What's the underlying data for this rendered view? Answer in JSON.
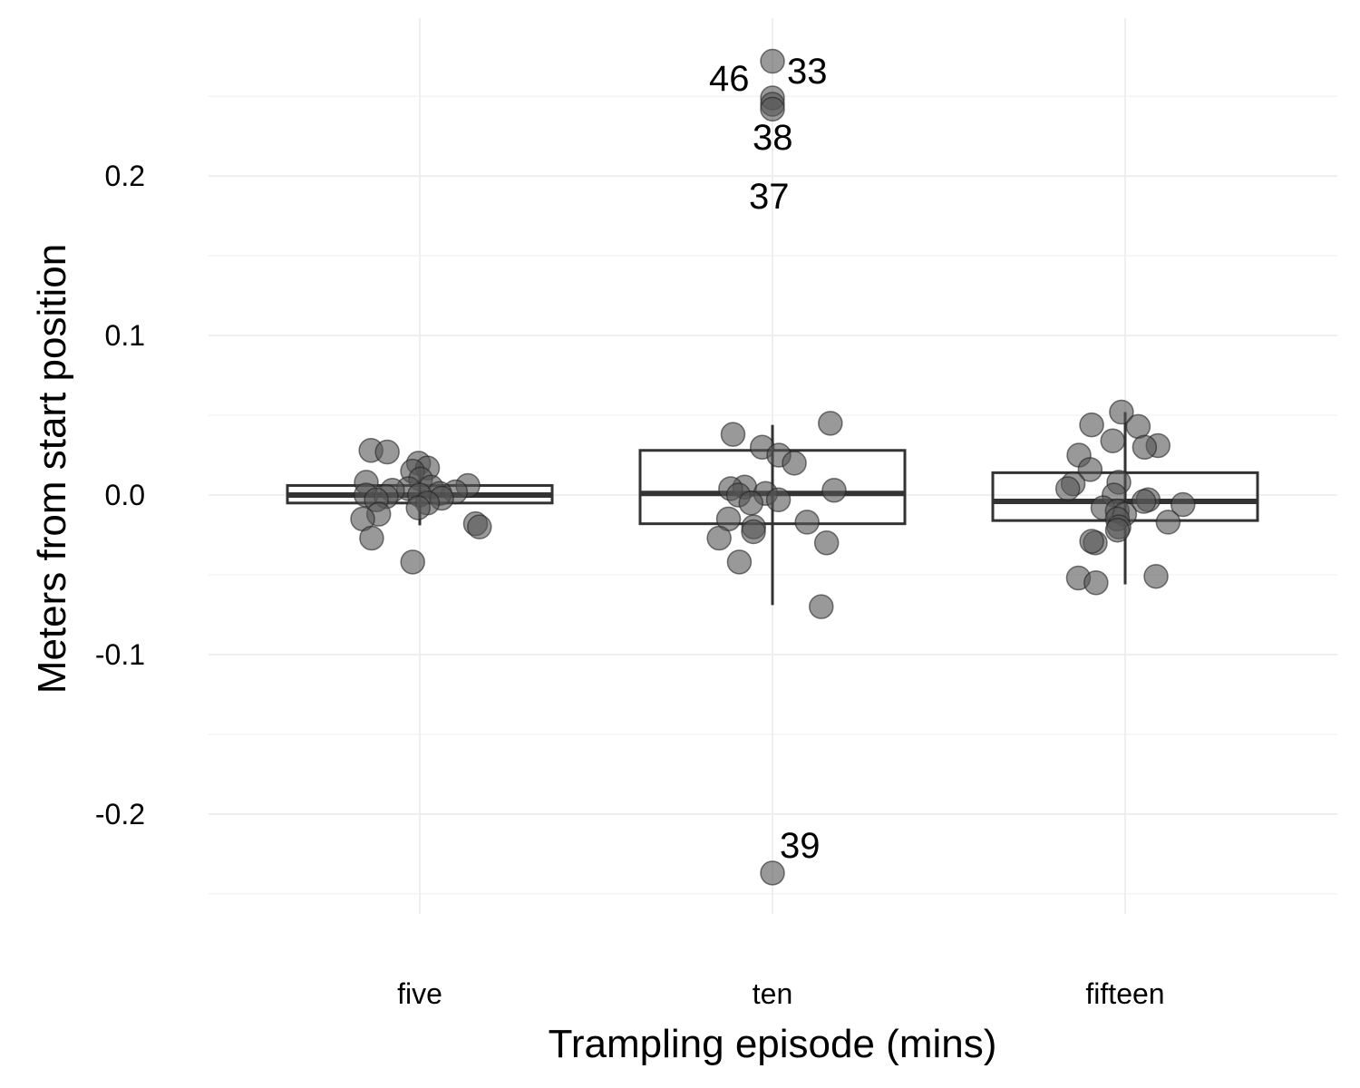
{
  "chart_data": {
    "type": "boxplot",
    "xlabel": "Trampling episode (mins)",
    "ylabel": "Meters from start position",
    "categories": [
      "five",
      "ten",
      "fifteen"
    ],
    "ylim": [
      -0.265,
      0.29
    ],
    "yticks": [
      -0.2,
      -0.1,
      0.0,
      0.1,
      0.2
    ],
    "ytick_labels": [
      "-0.2",
      "-0.1",
      "0.0",
      "0.1",
      "0.2"
    ],
    "grid": true,
    "legend": "none",
    "colors": {
      "point_fill": "#555555",
      "box_stroke": "#333333",
      "grid": "#ebebeb"
    },
    "boxes": [
      {
        "category": "five",
        "q1": -0.005,
        "median": 0.0,
        "q3": 0.006,
        "whisker_low": -0.019,
        "whisker_high": 0.02
      },
      {
        "category": "ten",
        "q1": -0.018,
        "median": 0.001,
        "q3": 0.028,
        "whisker_low": -0.069,
        "whisker_high": 0.044
      },
      {
        "category": "fifteen",
        "q1": -0.016,
        "median": -0.004,
        "q3": 0.014,
        "whisker_low": -0.056,
        "whisker_high": 0.052
      }
    ],
    "points": [
      {
        "category": "five",
        "values": [
          0.02,
          0.017,
          0.028,
          0.027,
          0.015,
          0.01,
          0.008,
          0.006,
          0.005,
          0.004,
          0.003,
          0.002,
          0.001,
          0.0,
          0.0,
          -0.001,
          -0.002,
          -0.003,
          -0.005,
          -0.008,
          -0.012,
          -0.015,
          -0.018,
          -0.02,
          -0.027,
          -0.042
        ]
      },
      {
        "category": "ten",
        "values": [
          0.045,
          0.038,
          0.03,
          0.025,
          0.02,
          0.005,
          0.004,
          0.003,
          0.001,
          0.0,
          -0.003,
          -0.005,
          -0.015,
          -0.017,
          -0.02,
          -0.023,
          -0.027,
          -0.03,
          -0.042,
          -0.07
        ]
      },
      {
        "category": "fifteen",
        "values": [
          0.052,
          0.044,
          0.043,
          0.034,
          0.031,
          0.03,
          0.025,
          0.016,
          0.008,
          0.007,
          0.004,
          0.0,
          -0.003,
          -0.004,
          -0.006,
          -0.008,
          -0.01,
          -0.012,
          -0.015,
          -0.017,
          -0.02,
          -0.022,
          -0.03,
          -0.029,
          -0.051,
          -0.052,
          -0.055
        ]
      }
    ],
    "labeled_outliers": [
      {
        "category": "ten",
        "value": 0.272,
        "label": "33"
      },
      {
        "category": "ten",
        "value": 0.249,
        "label": "46"
      },
      {
        "category": "ten",
        "value": 0.245,
        "label": "38"
      },
      {
        "category": "ten",
        "value": 0.242,
        "label": "37"
      },
      {
        "category": "ten",
        "value": -0.237,
        "label": "39"
      }
    ]
  }
}
